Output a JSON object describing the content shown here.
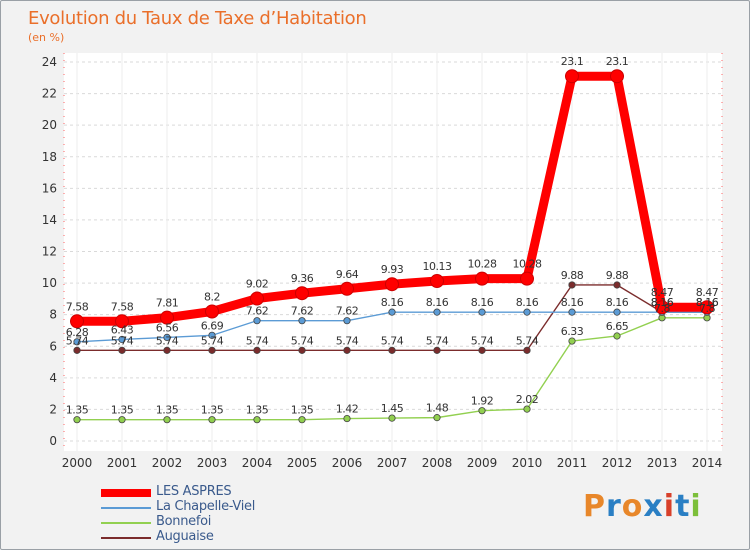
{
  "title": "Evolution du Taux de Taxe d’Habitation",
  "subtitle": "(en %)",
  "logo": {
    "text": "Proxiti",
    "colors": [
      "#e8872a",
      "#2a7fc4",
      "#e8872a",
      "#2a7fc4",
      "#d8402a",
      "#2a7fc4",
      "#7cbf3a"
    ]
  },
  "chart_data": {
    "type": "line",
    "x": [
      "2000",
      "2001",
      "2002",
      "2003",
      "2004",
      "2005",
      "2006",
      "2007",
      "2008",
      "2009",
      "2010",
      "2011",
      "2012",
      "2013",
      "2014"
    ],
    "ylim": [
      0,
      24
    ],
    "yticks": [
      "0",
      "2",
      "4",
      "6",
      "8",
      "10",
      "12",
      "14",
      "16",
      "18",
      "20",
      "22",
      "24"
    ],
    "grid": "horizontal dashed",
    "legend_position": "bottom-left",
    "series": [
      {
        "name": "LES ASPRES",
        "color": "#ff0000",
        "values": [
          7.58,
          7.58,
          7.81,
          8.2,
          9.02,
          9.36,
          9.64,
          9.93,
          10.13,
          10.28,
          10.28,
          23.1,
          23.1,
          8.47,
          8.47
        ],
        "labels": [
          "7.58",
          "7.58",
          "7.81",
          "8.2",
          "9.02",
          "9.36",
          "9.64",
          "9.93",
          "10.13",
          "10.28",
          "10.28",
          "23.1",
          "23.1",
          "8.47",
          "8.47"
        ]
      },
      {
        "name": "La Chapelle-Viel",
        "color": "#5b9bd5",
        "values": [
          6.28,
          6.43,
          6.56,
          6.69,
          7.62,
          7.62,
          7.62,
          8.16,
          8.16,
          8.16,
          8.16,
          8.16,
          8.16,
          8.16,
          8.16
        ],
        "labels": [
          "6.28",
          "6.43",
          "6.56",
          "6.69",
          "7.62",
          "7.62",
          "7.62",
          "8.16",
          "8.16",
          "8.16",
          "8.16",
          "8.16",
          "8.16",
          "8.16",
          "8.16"
        ]
      },
      {
        "name": "Bonnefoi",
        "color": "#92d050",
        "values": [
          1.35,
          1.35,
          1.35,
          1.35,
          1.35,
          1.35,
          1.42,
          1.45,
          1.48,
          1.92,
          2.02,
          6.33,
          6.65,
          7.8,
          7.8
        ],
        "labels": [
          "1.35",
          "1.35",
          "1.35",
          "1.35",
          "1.35",
          "1.35",
          "1.42",
          "1.45",
          "1.48",
          "1.92",
          "2.02",
          "6.33",
          "6.65",
          "7.8",
          "7.8"
        ]
      },
      {
        "name": "Auguaise",
        "color": "#7b2c2c",
        "values": [
          5.74,
          5.74,
          5.74,
          5.74,
          5.74,
          5.74,
          5.74,
          5.74,
          5.74,
          5.74,
          5.74,
          9.88,
          9.88,
          8.16,
          8.16
        ],
        "labels": [
          "5.74",
          "5.74",
          "5.74",
          "5.74",
          "5.74",
          "5.74",
          "5.74",
          "5.74",
          "5.74",
          "5.74",
          "5.74",
          "9.88",
          "9.88",
          "8.16",
          "8.16"
        ]
      }
    ]
  }
}
